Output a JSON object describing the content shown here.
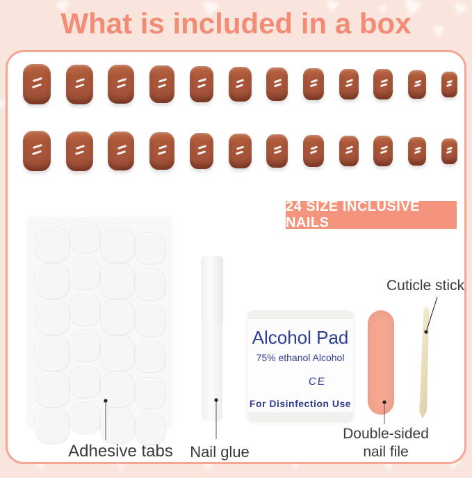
{
  "page": {
    "title": "What is included in a box"
  },
  "badge": {
    "label": "24 SIZE INCLUSIVE NAILS"
  },
  "nails": {
    "total_count": 24,
    "style": "short rounded square press-on nails, terracotta brown, glossy with two white shine dashes",
    "rows": [
      {
        "sizes": [
          [
            40,
            58
          ],
          [
            39,
            57
          ],
          [
            38,
            56
          ],
          [
            36,
            54
          ],
          [
            34,
            52
          ],
          [
            33,
            50
          ],
          [
            31,
            48
          ],
          [
            30,
            46
          ],
          [
            28,
            44
          ],
          [
            28,
            44
          ],
          [
            26,
            41
          ],
          [
            23,
            37
          ]
        ]
      },
      {
        "sizes": [
          [
            40,
            58
          ],
          [
            39,
            57
          ],
          [
            38,
            56
          ],
          [
            36,
            54
          ],
          [
            34,
            52
          ],
          [
            33,
            50
          ],
          [
            31,
            48
          ],
          [
            30,
            46
          ],
          [
            28,
            44
          ],
          [
            28,
            44
          ],
          [
            26,
            41
          ],
          [
            23,
            37
          ]
        ]
      }
    ]
  },
  "adhesive": {
    "label": "Adhesive tabs",
    "tab_count": 24
  },
  "glue": {
    "label": "Nail glue"
  },
  "alcohol_pad": {
    "title": "Alcohol Pad",
    "subtitle": "75% ethanol Alcohol",
    "mark": "CE",
    "footer": "For Disinfection Use"
  },
  "nail_file": {
    "label_line1": "Double-sided",
    "label_line2": "nail file"
  },
  "cuticle_stick": {
    "label": "Cuticle stick"
  },
  "decor": {
    "heart_glyph": "♥"
  },
  "colors": {
    "background": "#f9e5db",
    "title_text": "#f28c77",
    "box_border": "#f3a691",
    "badge_bg": "#f4947c",
    "nail": "#a5543a",
    "file": "#f4a791",
    "pad_text": "#2f3d92",
    "label_text": "#3a3a3a",
    "stick": "#e9dcba"
  }
}
